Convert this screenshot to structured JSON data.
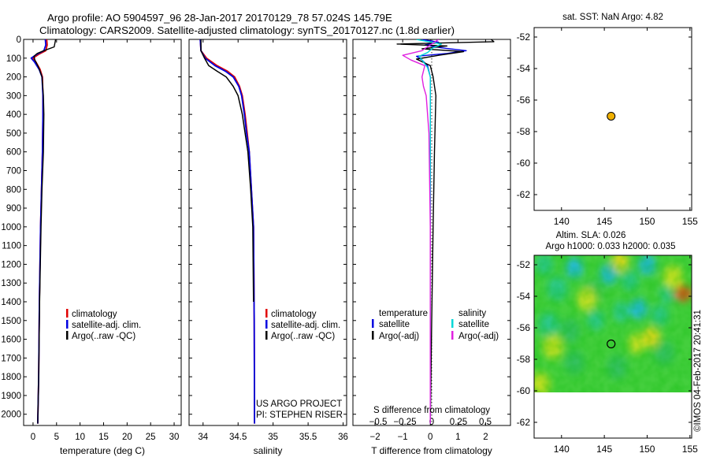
{
  "title_line1": "Argo profile: AO 5904597_96 28-Jan-2017 20170129_78 57.024S 145.79E",
  "title_line2": "Climatology: CARS2009. Satellite-adjusted climatology: synTS_20170127.nc (1.8d earlier)",
  "watermark": "©IMOS 04-Feb-2017 20:41:31",
  "colors": {
    "climatology": "#e00000",
    "satellite": "#0000e0",
    "argo": "#000000",
    "sal_satellite": "#00d8d8",
    "sal_argo": "#e020e0",
    "marker": "#f0b000"
  },
  "chart_data": [
    {
      "type": "line",
      "name": "temperature",
      "xlabel": "temperature (deg C)",
      "xlim": [
        -2,
        31.5
      ],
      "ylim": [
        2060,
        0
      ],
      "xticks": [
        0,
        5,
        10,
        15,
        20,
        25,
        30
      ],
      "xtick_labels": [
        "0",
        "5",
        "10",
        "15",
        "20",
        "25",
        "30"
      ],
      "yticks": [
        0,
        100,
        200,
        300,
        400,
        500,
        600,
        700,
        800,
        900,
        1000,
        1100,
        1200,
        1300,
        1400,
        1500,
        1600,
        1700,
        1800,
        1900,
        2000
      ],
      "ytick_labels": [
        "0",
        "100",
        "200",
        "300",
        "400",
        "500",
        "600",
        "700",
        "800",
        "900",
        "1000",
        "1100",
        "1200",
        "1300",
        "1400",
        "1500",
        "1600",
        "1700",
        "1800",
        "1900",
        "2000"
      ],
      "legend": [
        "climatology",
        "satellite-adj. clim.",
        "Argo(..raw -QC)"
      ],
      "series": [
        {
          "name": "climatology",
          "color": "#e00000",
          "x": [
            2.9,
            3.0,
            2.7,
            1.2,
            0.0,
            0.6,
            1.5,
            2.0,
            2.1,
            2.1,
            2.0,
            1.8,
            1.6,
            1.35,
            1.2,
            1.0
          ],
          "y": [
            0,
            30,
            60,
            80,
            100,
            120,
            160,
            200,
            300,
            400,
            600,
            800,
            1000,
            1400,
            1800,
            2050
          ]
        },
        {
          "name": "satellite-adj. clim.",
          "color": "#0000e0",
          "x": [
            2.6,
            2.7,
            2.3,
            0.8,
            -0.4,
            0.3,
            1.3,
            1.9,
            2.1,
            2.1,
            2.0,
            1.8,
            1.6,
            1.35,
            1.2,
            1.0
          ],
          "y": [
            0,
            30,
            60,
            80,
            100,
            120,
            160,
            200,
            300,
            400,
            600,
            800,
            1000,
            1400,
            1800,
            2050
          ]
        },
        {
          "name": "Argo(..raw -QC)",
          "color": "#000000",
          "x": [
            4.8,
            4.5,
            2.3,
            0.9,
            0.2,
            0.4,
            1.2,
            1.9,
            2.2,
            2.3,
            2.2,
            1.9,
            1.7,
            1.4,
            1.2,
            1.0
          ],
          "y": [
            0,
            40,
            60,
            75,
            90,
            110,
            150,
            200,
            300,
            400,
            600,
            800,
            1000,
            1400,
            1800,
            2050
          ]
        }
      ]
    },
    {
      "type": "line",
      "name": "salinity",
      "xlabel": "salinity",
      "xlim": [
        33.8,
        36.05
      ],
      "ylim": [
        2060,
        0
      ],
      "xticks": [
        34,
        34.5,
        35,
        35.5,
        36
      ],
      "xtick_labels": [
        "34",
        "34.5",
        "35",
        "35.5",
        "36"
      ],
      "legend": [
        "climatology",
        "satellite-adj. clim.",
        "Argo(..raw -QC)"
      ],
      "footer_lines": [
        "US ARGO PROJECT",
        "PI: STEPHEN RISER"
      ],
      "series": [
        {
          "name": "climatology",
          "color": "#e00000",
          "x": [
            33.96,
            33.97,
            34.05,
            34.2,
            34.35,
            34.45,
            34.52,
            34.56,
            34.6,
            34.63,
            34.66,
            34.69,
            34.72,
            34.73,
            34.735
          ],
          "y": [
            0,
            60,
            100,
            140,
            170,
            200,
            250,
            300,
            400,
            500,
            600,
            800,
            1000,
            1500,
            2050
          ]
        },
        {
          "name": "satellite-adj. clim.",
          "color": "#0000e0",
          "x": [
            33.96,
            33.97,
            34.03,
            34.17,
            34.32,
            34.43,
            34.51,
            34.55,
            34.59,
            34.62,
            34.66,
            34.69,
            34.72,
            34.73,
            34.735
          ],
          "y": [
            0,
            60,
            100,
            140,
            170,
            200,
            250,
            300,
            400,
            500,
            600,
            800,
            1000,
            1500,
            2050
          ]
        },
        {
          "name": "Argo(..raw -QC)",
          "color": "#000000",
          "x": [
            33.97,
            33.97,
            34.02,
            34.08,
            34.2,
            34.33,
            34.43,
            34.5,
            34.56,
            34.6,
            34.64,
            34.68,
            34.71,
            34.72
          ],
          "y": [
            0,
            60,
            100,
            140,
            170,
            200,
            250,
            300,
            400,
            500,
            600,
            800,
            1000,
            1400
          ]
        }
      ]
    },
    {
      "type": "line",
      "name": "differences",
      "xlabel": "T difference from climatology",
      "xlabel2": "S difference from climatology",
      "xlim": [
        -2.8,
        2.9
      ],
      "ylim": [
        2060,
        0
      ],
      "xticks": [
        -2,
        -1,
        0,
        1,
        2
      ],
      "xtick_labels": [
        "−2",
        "−1",
        "0",
        "1",
        "2"
      ],
      "s_xticks": [
        -0.5,
        -0.25,
        0,
        0.25,
        0.5
      ],
      "s_xtick_labels": [
        "−0.5",
        "−0.25",
        "0",
        "0.25",
        "0.5"
      ],
      "legend_titles": [
        "temperature",
        "salinity"
      ],
      "legend": [
        "satellite",
        "Argo(-adj)",
        "satellite",
        "Argo(-adj)"
      ],
      "series": [
        {
          "name": "temperature satellite",
          "color": "#0000e0",
          "x": [
            -0.3,
            0.3,
            -0.2,
            0.4,
            1.3,
            0.6,
            -0.5,
            -0.3,
            -0.1,
            0.0,
            0.0,
            0.0,
            0.0,
            0.0,
            0.0
          ],
          "y": [
            0,
            15,
            30,
            45,
            60,
            75,
            90,
            110,
            140,
            200,
            300,
            600,
            1000,
            1500,
            2050
          ]
        },
        {
          "name": "temperature Argo(-adj)",
          "color": "#000000",
          "x": [
            2.2,
            2.3,
            -1.2,
            0.6,
            -0.3,
            1.2,
            0.3,
            -0.5,
            0.0,
            0.1,
            0.2,
            0.15,
            0.1,
            0.05,
            0.0
          ],
          "y": [
            0,
            12,
            25,
            35,
            50,
            65,
            85,
            105,
            140,
            200,
            300,
            600,
            1000,
            1500,
            2050
          ]
        },
        {
          "name": "salinity satellite",
          "color": "#00d8d8",
          "x": [
            -0.5,
            0.4,
            0.1,
            -0.1,
            -0.4,
            -0.3,
            -0.1,
            0.0,
            0.0,
            0.0,
            0.0,
            0.0
          ],
          "y": [
            0,
            25,
            45,
            70,
            90,
            110,
            150,
            200,
            300,
            600,
            1000,
            2050
          ]
        },
        {
          "name": "salinity Argo(-adj)",
          "color": "#e020e0",
          "x": [
            0.3,
            0.0,
            -0.3,
            -1.0,
            -0.7,
            -0.2,
            -0.3,
            -0.25,
            -0.15,
            -0.05,
            0.0,
            0.0
          ],
          "y": [
            0,
            30,
            60,
            85,
            110,
            140,
            200,
            250,
            300,
            500,
            1000,
            2050
          ]
        }
      ]
    },
    {
      "type": "scatter",
      "name": "sst-map",
      "title": "sat. SST: NaN Argo: 4.82",
      "xlim": [
        136.8,
        155.2
      ],
      "ylim": [
        -63,
        -51.4
      ],
      "xticks": [
        140,
        145,
        150,
        155
      ],
      "xtick_labels": [
        "140",
        "145",
        "150",
        "155"
      ],
      "yticks": [
        -52,
        -54,
        -56,
        -58,
        -60,
        -62
      ],
      "ytick_labels": [
        "-52",
        "-54",
        "-56",
        "-58",
        "-60",
        "-62"
      ],
      "points": [
        {
          "x": 145.79,
          "y": -57.024
        }
      ]
    },
    {
      "type": "heatmap",
      "name": "sla-map",
      "title_line1": "Altim. SLA: 0.026",
      "title_line2": "Argo h1000: 0.033 h2000: 0.035",
      "xlim": [
        136.8,
        155.2
      ],
      "ylim": [
        -63,
        -51.4
      ],
      "data_lat_range": [
        -60.1,
        -51.4
      ],
      "xticks": [
        140,
        145,
        150,
        155
      ],
      "xtick_labels": [
        "140",
        "145",
        "150",
        "155"
      ],
      "yticks": [
        -52,
        -54,
        -56,
        -58,
        -60,
        -62
      ],
      "ytick_labels": [
        "-52",
        "-54",
        "-56",
        "-58",
        "-60",
        "-62"
      ],
      "points": [
        {
          "x": 145.79,
          "y": -57.024
        }
      ],
      "features": [
        {
          "lon": 138.0,
          "lat": -52.0,
          "value": -1.0
        },
        {
          "lon": 139.5,
          "lat": -53.5,
          "value": -0.9
        },
        {
          "lon": 141.5,
          "lat": -52.2,
          "value": -1.2
        },
        {
          "lon": 143.5,
          "lat": -53.8,
          "value": -0.8
        },
        {
          "lon": 145.5,
          "lat": -52.6,
          "value": -1.3
        },
        {
          "lon": 148.0,
          "lat": -53.0,
          "value": -1.1
        },
        {
          "lon": 150.0,
          "lat": -52.0,
          "value": -1.3
        },
        {
          "lon": 152.5,
          "lat": -53.8,
          "value": -1.0
        },
        {
          "lon": 138.5,
          "lat": -55.8,
          "value": -0.9
        },
        {
          "lon": 141.0,
          "lat": -56.2,
          "value": -0.8
        },
        {
          "lon": 144.0,
          "lat": -55.5,
          "value": -1.0
        },
        {
          "lon": 147.0,
          "lat": -55.0,
          "value": -1.1
        },
        {
          "lon": 149.0,
          "lat": -54.8,
          "value": -1.2
        },
        {
          "lon": 151.5,
          "lat": -55.2,
          "value": -1.1
        },
        {
          "lon": 141.5,
          "lat": -58.2,
          "value": -0.5
        },
        {
          "lon": 146.5,
          "lat": -58.5,
          "value": -0.6
        },
        {
          "lon": 152.0,
          "lat": -57.6,
          "value": -0.7
        },
        {
          "lon": 154.5,
          "lat": -58.8,
          "value": -0.4
        },
        {
          "lon": 154.2,
          "lat": -53.8,
          "value": 3.0
        },
        {
          "lon": 153.0,
          "lat": -52.8,
          "value": 0.8
        },
        {
          "lon": 146.8,
          "lat": -51.8,
          "value": 1.4
        },
        {
          "lon": 150.5,
          "lat": -56.6,
          "value": 1.3
        },
        {
          "lon": 148.8,
          "lat": -57.0,
          "value": 1.1
        },
        {
          "lon": 143.0,
          "lat": -54.2,
          "value": 0.9
        },
        {
          "lon": 139.0,
          "lat": -57.2,
          "value": 0.7
        },
        {
          "lon": 137.5,
          "lat": -59.6,
          "value": 0.8
        },
        {
          "lon": 144.5,
          "lat": -59.8,
          "value": 0.5
        }
      ]
    }
  ]
}
